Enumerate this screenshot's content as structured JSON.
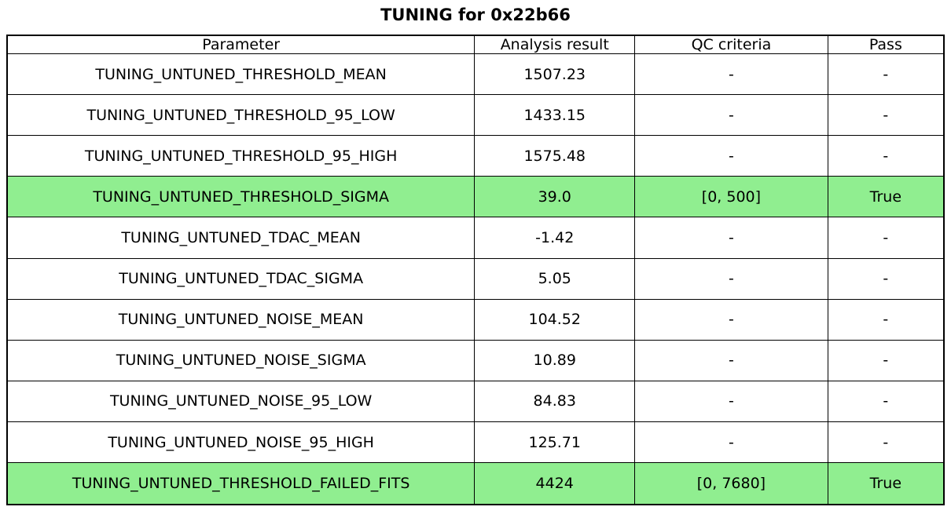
{
  "chart_data": {
    "type": "table",
    "title": "TUNING for 0x22b66",
    "columns": [
      "Parameter",
      "Analysis result",
      "QC criteria",
      "Pass"
    ],
    "rows": [
      {
        "parameter": "TUNING_UNTUNED_THRESHOLD_MEAN",
        "analysis_result": "1507.23",
        "qc_criteria": "-",
        "pass": "-",
        "highlight": false
      },
      {
        "parameter": "TUNING_UNTUNED_THRESHOLD_95_LOW",
        "analysis_result": "1433.15",
        "qc_criteria": "-",
        "pass": "-",
        "highlight": false
      },
      {
        "parameter": "TUNING_UNTUNED_THRESHOLD_95_HIGH",
        "analysis_result": "1575.48",
        "qc_criteria": "-",
        "pass": "-",
        "highlight": false
      },
      {
        "parameter": "TUNING_UNTUNED_THRESHOLD_SIGMA",
        "analysis_result": "39.0",
        "qc_criteria": "[0, 500]",
        "pass": "True",
        "highlight": true
      },
      {
        "parameter": "TUNING_UNTUNED_TDAC_MEAN",
        "analysis_result": "-1.42",
        "qc_criteria": "-",
        "pass": "-",
        "highlight": false
      },
      {
        "parameter": "TUNING_UNTUNED_TDAC_SIGMA",
        "analysis_result": "5.05",
        "qc_criteria": "-",
        "pass": "-",
        "highlight": false
      },
      {
        "parameter": "TUNING_UNTUNED_NOISE_MEAN",
        "analysis_result": "104.52",
        "qc_criteria": "-",
        "pass": "-",
        "highlight": false
      },
      {
        "parameter": "TUNING_UNTUNED_NOISE_SIGMA",
        "analysis_result": "10.89",
        "qc_criteria": "-",
        "pass": "-",
        "highlight": false
      },
      {
        "parameter": "TUNING_UNTUNED_NOISE_95_LOW",
        "analysis_result": "84.83",
        "qc_criteria": "-",
        "pass": "-",
        "highlight": false
      },
      {
        "parameter": "TUNING_UNTUNED_NOISE_95_HIGH",
        "analysis_result": "125.71",
        "qc_criteria": "-",
        "pass": "-",
        "highlight": false
      },
      {
        "parameter": "TUNING_UNTUNED_THRESHOLD_FAILED_FITS",
        "analysis_result": "4424",
        "qc_criteria": "[0, 7680]",
        "pass": "True",
        "highlight": true
      }
    ],
    "highlight_rows": [
      3,
      10
    ],
    "colors": {
      "highlight_green": "#90ee90",
      "border": "#000000",
      "text": "#000000",
      "background": "#ffffff"
    },
    "layout": {
      "grid": "full-borders",
      "title_position": "top-center"
    }
  }
}
